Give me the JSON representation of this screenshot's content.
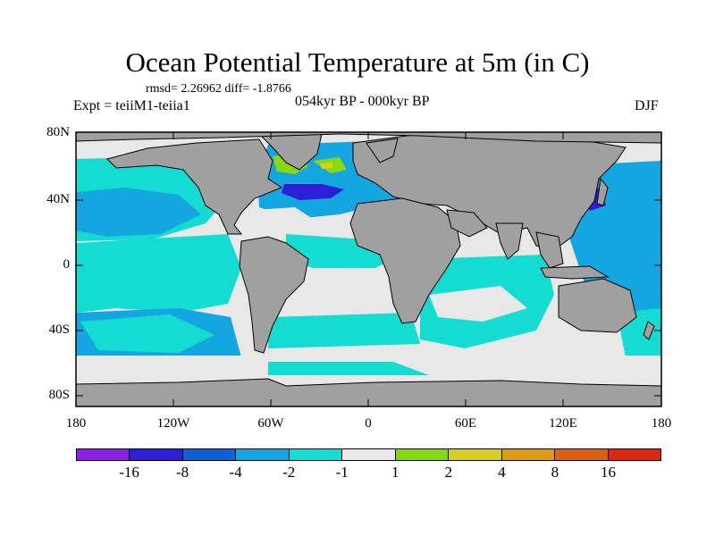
{
  "header": {
    "title": "Ocean Potential Temperature at 5m (in C)",
    "stats": "rmsd= 2.26962 diff= -1.8766",
    "experiment": "Expt = teiiM1-teiia1",
    "period": "054kyr BP - 000kyr BP",
    "season": "DJF"
  },
  "map": {
    "lat_labels": [
      "80N",
      "40N",
      "0",
      "40S",
      "80S"
    ],
    "lon_labels": [
      "180",
      "120W",
      "60W",
      "0",
      "60E",
      "120E",
      "180"
    ],
    "land_color": "#a0a0a0",
    "ocean_default_color": "#e8e8e8"
  },
  "colorbar": {
    "colors": [
      "#8e1fe6",
      "#2c1fd6",
      "#1060d8",
      "#14a6e0",
      "#14dcd0",
      "#e8e8e8",
      "#88d810",
      "#d8d020",
      "#dc9c10",
      "#dc6010",
      "#dc2810"
    ],
    "labels": [
      "-16",
      "-8",
      "-4",
      "-2",
      "-1",
      "1",
      "2",
      "4",
      "8",
      "16"
    ]
  }
}
